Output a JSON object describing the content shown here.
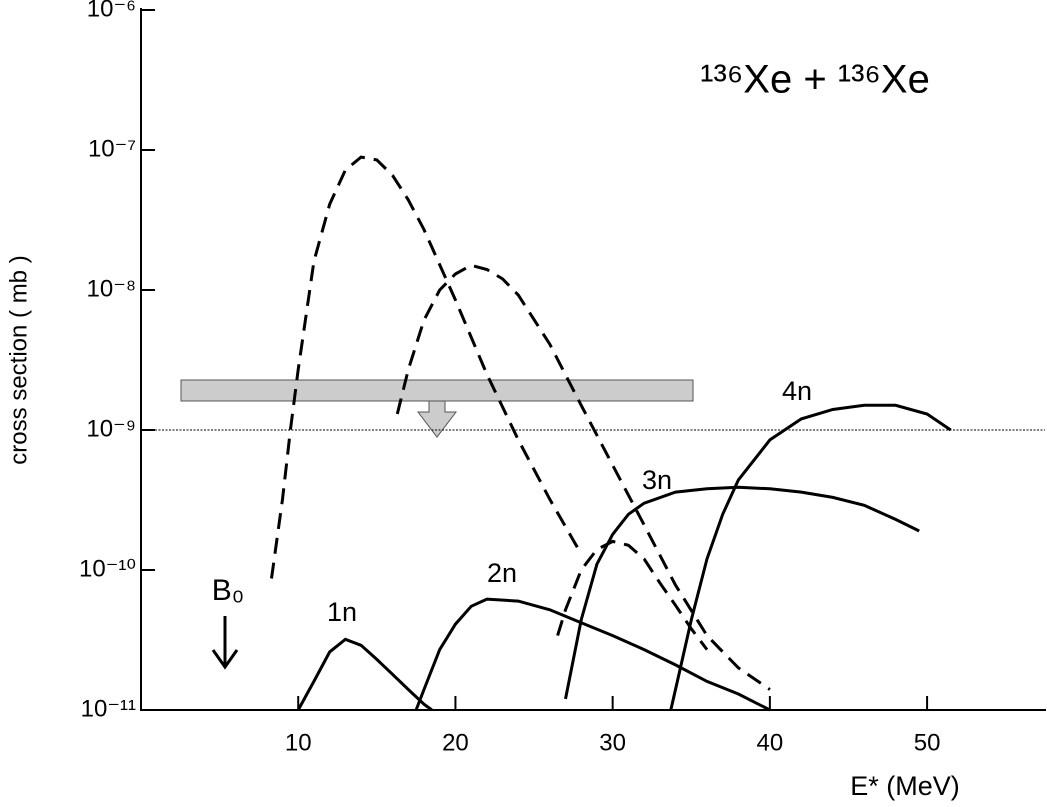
{
  "chart_data": {
    "type": "line",
    "title": "¹³⁶Xe + ¹³⁶Xe",
    "x_label": "E* (MeV)",
    "y_label": "cross section ( mb )",
    "log_y": true,
    "xlim": [
      0,
      57.5
    ],
    "xticks": [
      10,
      20,
      30,
      40,
      50
    ],
    "ylim": [
      1e-11,
      1e-06
    ],
    "yticks": [
      {
        "value": 1e-11,
        "label": "10⁻¹¹"
      },
      {
        "value": 1e-10,
        "label": "10⁻¹⁰"
      },
      {
        "value": 1e-09,
        "label": "10⁻⁹"
      },
      {
        "value": 1e-08,
        "label": "10⁻⁸"
      },
      {
        "value": 1e-07,
        "label": "10⁻⁷"
      },
      {
        "value": 1e-06,
        "label": "10⁻⁶"
      }
    ],
    "reference_line": 1e-09,
    "annotation": "B₀",
    "series": [
      {
        "name": "1n",
        "style": "solid",
        "color": "#000000",
        "x": [
          10,
          11,
          12,
          13,
          14,
          15,
          16,
          17,
          18,
          18.5
        ],
        "values": [
          1e-11,
          1.6e-11,
          2.6e-11,
          3.2e-11,
          2.9e-11,
          2.3e-11,
          1.8e-11,
          1.4e-11,
          1.1e-11,
          1e-11
        ]
      },
      {
        "name": "2n",
        "style": "solid",
        "color": "#000000",
        "x": [
          17.5,
          18,
          19,
          20,
          21,
          22,
          24,
          26,
          28,
          30,
          32,
          34,
          36,
          38,
          40
        ],
        "values": [
          1e-11,
          1.4e-11,
          2.7e-11,
          4.1e-11,
          5.5e-11,
          6.2e-11,
          6e-11,
          5.2e-11,
          4.2e-11,
          3.4e-11,
          2.7e-11,
          2.1e-11,
          1.6e-11,
          1.3e-11,
          1e-11
        ]
      },
      {
        "name": "3n",
        "style": "solid",
        "color": "#000000",
        "x": [
          27,
          28,
          29,
          30,
          31,
          32,
          34,
          36,
          38,
          40,
          42,
          44,
          46,
          48,
          49.5
        ],
        "values": [
          1.2e-11,
          4.4e-11,
          1.1e-10,
          1.8e-10,
          2.5e-10,
          3e-10,
          3.6e-10,
          3.8e-10,
          3.9e-10,
          3.8e-10,
          3.6e-10,
          3.3e-10,
          2.9e-10,
          2.3e-10,
          1.9e-10
        ]
      },
      {
        "name": "4n",
        "style": "solid",
        "color": "#000000",
        "x": [
          33.7,
          34,
          35,
          36,
          37,
          38,
          40,
          42,
          44,
          46,
          47,
          48,
          50,
          51.5
        ],
        "values": [
          1e-11,
          1.4e-11,
          4.4e-11,
          1.2e-10,
          2.5e-10,
          4.4e-10,
          8.5e-10,
          1.2e-09,
          1.4e-09,
          1.5e-09,
          1.5e-09,
          1.5e-09,
          1.3e-09,
          1e-09
        ]
      },
      {
        "style": "dashed",
        "color": "#000000",
        "x": [
          8.3,
          9,
          9.5,
          10,
          11,
          12,
          13,
          14,
          15,
          16,
          17,
          18,
          20,
          22,
          24,
          26,
          28
        ],
        "values": [
          8.7e-11,
          3.2e-10,
          1e-09,
          2.7e-09,
          1.6e-08,
          4.1e-08,
          7.2e-08,
          8.9e-08,
          8.5e-08,
          6.6e-08,
          4.4e-08,
          2.7e-08,
          8.5e-09,
          2.5e-09,
          8.5e-10,
          3.2e-10,
          1.3e-10
        ]
      },
      {
        "style": "dashed",
        "color": "#000000",
        "x": [
          16.3,
          17,
          18,
          19,
          20,
          21,
          22,
          23,
          24,
          26,
          28,
          30,
          32,
          34,
          36,
          38,
          40
        ],
        "values": [
          1.3e-09,
          2.7e-09,
          6.1e-09,
          1e-08,
          1.3e-08,
          1.5e-08,
          1.4e-08,
          1.2e-08,
          9.2e-09,
          4.1e-09,
          1.5e-09,
          5.6e-10,
          2.1e-10,
          7.8e-11,
          3.4e-11,
          2e-11,
          1.4e-11
        ]
      },
      {
        "style": "dashed",
        "color": "#000000",
        "x": [
          26.5,
          27,
          28,
          29,
          30,
          31,
          32,
          33,
          34,
          35,
          36
        ],
        "values": [
          3.4e-11,
          5.2e-11,
          1e-10,
          1.4e-10,
          1.6e-10,
          1.5e-10,
          1.2e-10,
          8.1e-11,
          5.6e-11,
          3.8e-11,
          2.7e-11
        ]
      }
    ]
  }
}
